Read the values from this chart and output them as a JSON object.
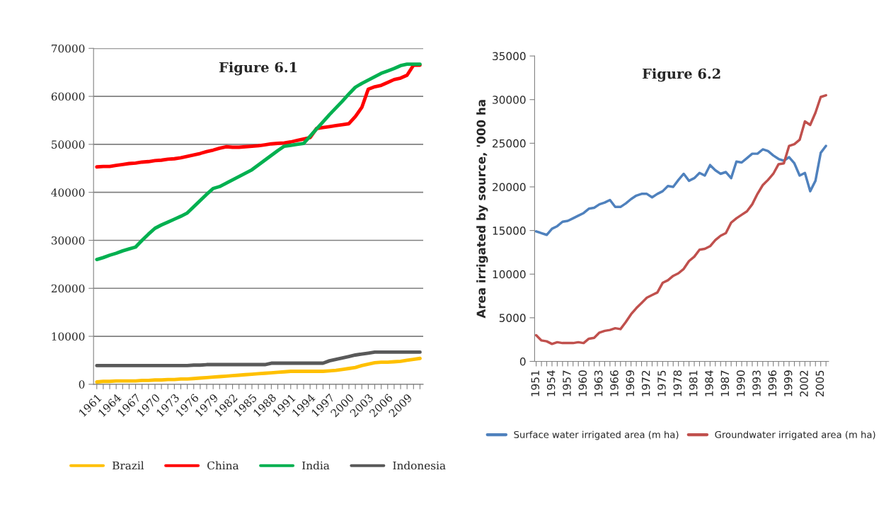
{
  "chart_data": [
    {
      "type": "line",
      "title": "Figure 6.1",
      "categories": [
        "1961",
        null,
        null,
        "1964",
        null,
        null,
        "1967",
        null,
        null,
        "1970",
        null,
        null,
        "1973",
        null,
        null,
        "1976",
        null,
        null,
        "1979",
        null,
        null,
        "1982",
        null,
        null,
        "1985",
        null,
        null,
        "1988",
        null,
        null,
        "1991",
        null,
        null,
        "1994",
        null,
        null,
        "1997",
        null,
        null,
        "2000",
        null,
        null,
        "2003",
        null,
        null,
        "2006",
        null,
        null,
        "2009",
        null,
        null
      ],
      "series": [
        {
          "name": "Brazil",
          "color": "#ffc000",
          "values": [
            500,
            600,
            600,
            700,
            700,
            700,
            700,
            800,
            800,
            900,
            900,
            1000,
            1000,
            1100,
            1100,
            1200,
            1300,
            1400,
            1500,
            1600,
            1700,
            1800,
            1900,
            2000,
            2100,
            2200,
            2300,
            2400,
            2500,
            2600,
            2700,
            2700,
            2700,
            2700,
            2700,
            2700,
            2800,
            2900,
            3100,
            3300,
            3500,
            3900,
            4200,
            4500,
            4600,
            4600,
            4700,
            4800,
            5000,
            5200,
            5400
          ]
        },
        {
          "name": "China",
          "color": "#ff0000",
          "values": [
            45300,
            45400,
            45400,
            45600,
            45800,
            46000,
            46100,
            46300,
            46400,
            46600,
            46700,
            46900,
            47000,
            47200,
            47500,
            47800,
            48100,
            48500,
            48800,
            49200,
            49500,
            49400,
            49400,
            49500,
            49600,
            49700,
            49900,
            50100,
            50200,
            50300,
            50500,
            50800,
            51100,
            51400,
            53300,
            53500,
            53700,
            53900,
            54100,
            54300,
            55800,
            57700,
            61500,
            62000,
            62300,
            62900,
            63500,
            63800,
            64400,
            66500,
            66500
          ]
        },
        {
          "name": "India",
          "color": "#00b050",
          "values": [
            26000,
            26400,
            26900,
            27300,
            27800,
            28200,
            28600,
            30000,
            31300,
            32500,
            33200,
            33800,
            34400,
            35000,
            35700,
            37000,
            38300,
            39600,
            40800,
            41200,
            41900,
            42600,
            43300,
            44000,
            44700,
            45700,
            46700,
            47700,
            48700,
            49600,
            49800,
            50000,
            50200,
            51700,
            53200,
            54700,
            56200,
            57600,
            59000,
            60500,
            61900,
            62700,
            63400,
            64100,
            64800,
            65300,
            65800,
            66400,
            66700,
            66700,
            66700
          ]
        },
        {
          "name": "Indonesia",
          "color": "#595959",
          "values": [
            3900,
            3900,
            3900,
            3900,
            3900,
            3900,
            3900,
            3900,
            3900,
            3900,
            3900,
            3900,
            3900,
            3900,
            3900,
            4000,
            4000,
            4100,
            4100,
            4100,
            4100,
            4100,
            4100,
            4100,
            4100,
            4100,
            4100,
            4400,
            4400,
            4400,
            4400,
            4400,
            4400,
            4400,
            4400,
            4400,
            4900,
            5200,
            5500,
            5800,
            6100,
            6300,
            6500,
            6700,
            6700,
            6700,
            6700,
            6700,
            6700,
            6700,
            6700
          ]
        }
      ],
      "ylim": [
        0,
        70000
      ],
      "yticks": [
        0,
        10000,
        20000,
        30000,
        40000,
        50000,
        60000,
        70000
      ],
      "grid": "y",
      "legend": "bottom"
    },
    {
      "type": "line",
      "title": "Figure 6.2",
      "ylabel": "Area irrigated by source, '000 ha",
      "categories": [
        "1951",
        null,
        null,
        "1954",
        null,
        null,
        "1957",
        null,
        null,
        "1960",
        null,
        null,
        "1963",
        null,
        null,
        "1966",
        null,
        null,
        "1969",
        null,
        null,
        "1972",
        null,
        null,
        "1975",
        null,
        null,
        "1978",
        null,
        null,
        "1981",
        null,
        null,
        "1984",
        null,
        null,
        "1987",
        null,
        null,
        "1990",
        null,
        null,
        "1993",
        null,
        null,
        "1996",
        null,
        null,
        "1999",
        null,
        null,
        "2002",
        null,
        null,
        "2005",
        null
      ],
      "series": [
        {
          "name": "Surface water irrigated area (m ha)",
          "color": "#4f81bd",
          "values": [
            14900,
            14700,
            14500,
            15200,
            15500,
            16000,
            16100,
            16400,
            16700,
            17000,
            17500,
            17600,
            18000,
            18200,
            18500,
            17700,
            17700,
            18100,
            18600,
            19000,
            19200,
            19200,
            18800,
            19200,
            19500,
            20100,
            20000,
            20800,
            21500,
            20700,
            21000,
            21600,
            21300,
            22500,
            21900,
            21500,
            21700,
            21000,
            22900,
            22800,
            23300,
            23800,
            23800,
            24300,
            24100,
            23600,
            23200,
            23000,
            23400,
            22700,
            21300,
            21600,
            19500,
            20700,
            23900,
            24700
          ]
        },
        {
          "name": "Groundwater irrigated area (m ha)",
          "color": "#c0504d",
          "values": [
            3000,
            2400,
            2300,
            2000,
            2200,
            2100,
            2100,
            2100,
            2200,
            2100,
            2600,
            2700,
            3300,
            3500,
            3600,
            3800,
            3700,
            4500,
            5400,
            6100,
            6700,
            7300,
            7600,
            7900,
            9000,
            9300,
            9800,
            10100,
            10600,
            11500,
            12000,
            12800,
            12900,
            13200,
            13900,
            14400,
            14700,
            15900,
            16400,
            16800,
            17200,
            18000,
            19200,
            20200,
            20800,
            21500,
            22600,
            22700,
            24700,
            24900,
            25400,
            27500,
            27100,
            28500,
            30300,
            30500
          ]
        }
      ],
      "ylim": [
        0,
        35000
      ],
      "yticks": [
        0,
        5000,
        10000,
        15000,
        20000,
        25000,
        30000,
        35000
      ],
      "grid": false,
      "legend": "bottom"
    }
  ]
}
